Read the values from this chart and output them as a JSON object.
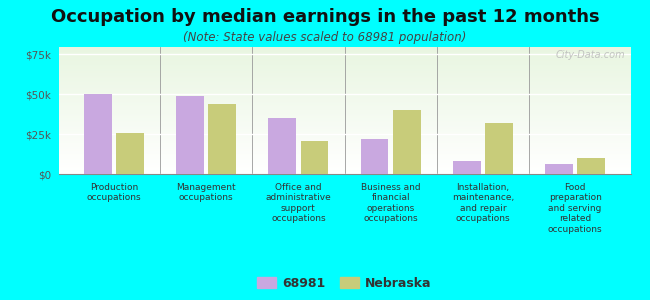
{
  "title": "Occupation by median earnings in the past 12 months",
  "subtitle": "(Note: State values scaled to 68981 population)",
  "categories": [
    "Production\noccupations",
    "Management\noccupations",
    "Office and\nadministrative\nsupport\noccupations",
    "Business and\nfinancial\noperations\noccupations",
    "Installation,\nmaintenance,\nand repair\noccupations",
    "Food\npreparation\nand serving\nrelated\noccupations"
  ],
  "city_values": [
    50000,
    49000,
    35000,
    22000,
    8000,
    6000
  ],
  "state_values": [
    26000,
    44000,
    21000,
    40000,
    32000,
    10000
  ],
  "city_color": "#c9a8e0",
  "state_color": "#c8cc7a",
  "city_label": "68981",
  "state_label": "Nebraska",
  "ylim": [
    0,
    80000
  ],
  "yticks": [
    0,
    25000,
    50000,
    75000
  ],
  "ytick_labels": [
    "$0",
    "$25k",
    "$50k",
    "$75k"
  ],
  "background_color": "#00ffff",
  "watermark": "City-Data.com",
  "title_fontsize": 13,
  "subtitle_fontsize": 8.5,
  "tick_fontsize": 7.5,
  "xtick_fontsize": 6.5,
  "legend_fontsize": 9
}
